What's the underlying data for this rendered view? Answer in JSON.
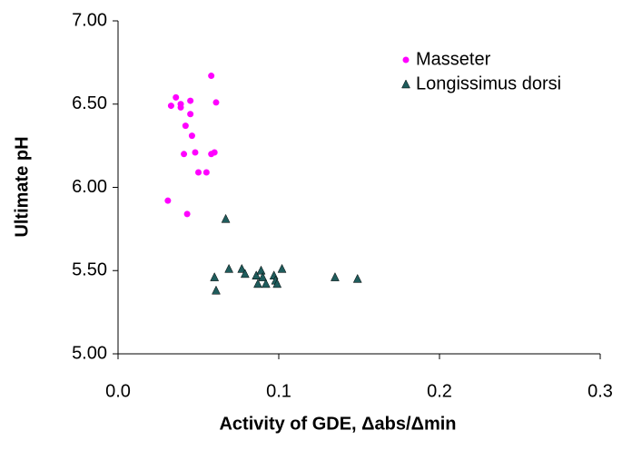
{
  "chart_data": {
    "type": "scatter",
    "x_label": "Activity of GDE, Δabs/Δmin",
    "y_label": "Ultimate pH",
    "xlim": [
      0,
      0.3
    ],
    "ylim": [
      5,
      7
    ],
    "xticks": [
      {
        "value": 0,
        "label": "0.0"
      },
      0.1,
      0.2,
      0.3
    ],
    "yticks": [
      {
        "value": 5,
        "label": "5.00"
      },
      {
        "value": 5.5,
        "label": "5.50"
      },
      {
        "value": 6,
        "label": "6.00"
      },
      {
        "value": 6.5,
        "label": "6.50"
      },
      {
        "value": 7,
        "label": "7.00"
      }
    ],
    "grid": false,
    "legend": "top-right",
    "series": [
      {
        "name": "Masseter",
        "color": "#ff00ff",
        "marker": "circle",
        "x": [
          0.058,
          0.036,
          0.033,
          0.039,
          0.039,
          0.045,
          0.061,
          0.045,
          0.042,
          0.046,
          0.041,
          0.048,
          0.058,
          0.06,
          0.05,
          0.055,
          0.031,
          0.043
        ],
        "values": [
          6.67,
          6.54,
          6.49,
          6.5,
          6.48,
          6.52,
          6.51,
          6.44,
          6.37,
          6.31,
          6.2,
          6.21,
          6.2,
          6.21,
          6.09,
          6.09,
          5.92,
          5.84
        ]
      },
      {
        "name": "Longissimus dorsi",
        "color": "#1f5c5c",
        "marker": "triangle",
        "x": [
          0.067,
          0.06,
          0.061,
          0.069,
          0.077,
          0.079,
          0.086,
          0.087,
          0.089,
          0.09,
          0.092,
          0.097,
          0.098,
          0.099,
          0.102,
          0.135,
          0.149
        ],
        "values": [
          5.81,
          5.46,
          5.38,
          5.51,
          5.51,
          5.48,
          5.47,
          5.42,
          5.5,
          5.46,
          5.42,
          5.47,
          5.44,
          5.42,
          5.51,
          5.46,
          5.45
        ]
      }
    ]
  }
}
